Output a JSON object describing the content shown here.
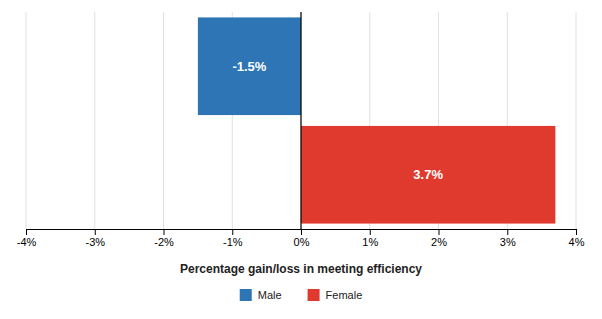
{
  "chart_data": {
    "type": "bar",
    "orientation": "horizontal",
    "categories": [
      "Male",
      "Female"
    ],
    "values": [
      -1.5,
      3.7
    ],
    "value_labels": [
      "-1.5%",
      "3.7%"
    ],
    "data_labels": true,
    "colors": [
      "#2E75B6",
      "#E03A2F"
    ],
    "xlabel": "Percentage gain/loss in meeting efficiency",
    "xlim": [
      -4,
      4
    ],
    "xticks": [
      {
        "value": -4,
        "label": "-4%"
      },
      {
        "value": -3,
        "label": "-3%"
      },
      {
        "value": -2,
        "label": "-2%"
      },
      {
        "value": -1,
        "label": "-1%"
      },
      {
        "value": 0,
        "label": "0%"
      },
      {
        "value": 1,
        "label": "1%"
      },
      {
        "value": 2,
        "label": "2%"
      },
      {
        "value": 3,
        "label": "3%"
      },
      {
        "value": 4,
        "label": "4%"
      }
    ],
    "grid": true,
    "legend": "bottom",
    "tick_labels": "x"
  }
}
